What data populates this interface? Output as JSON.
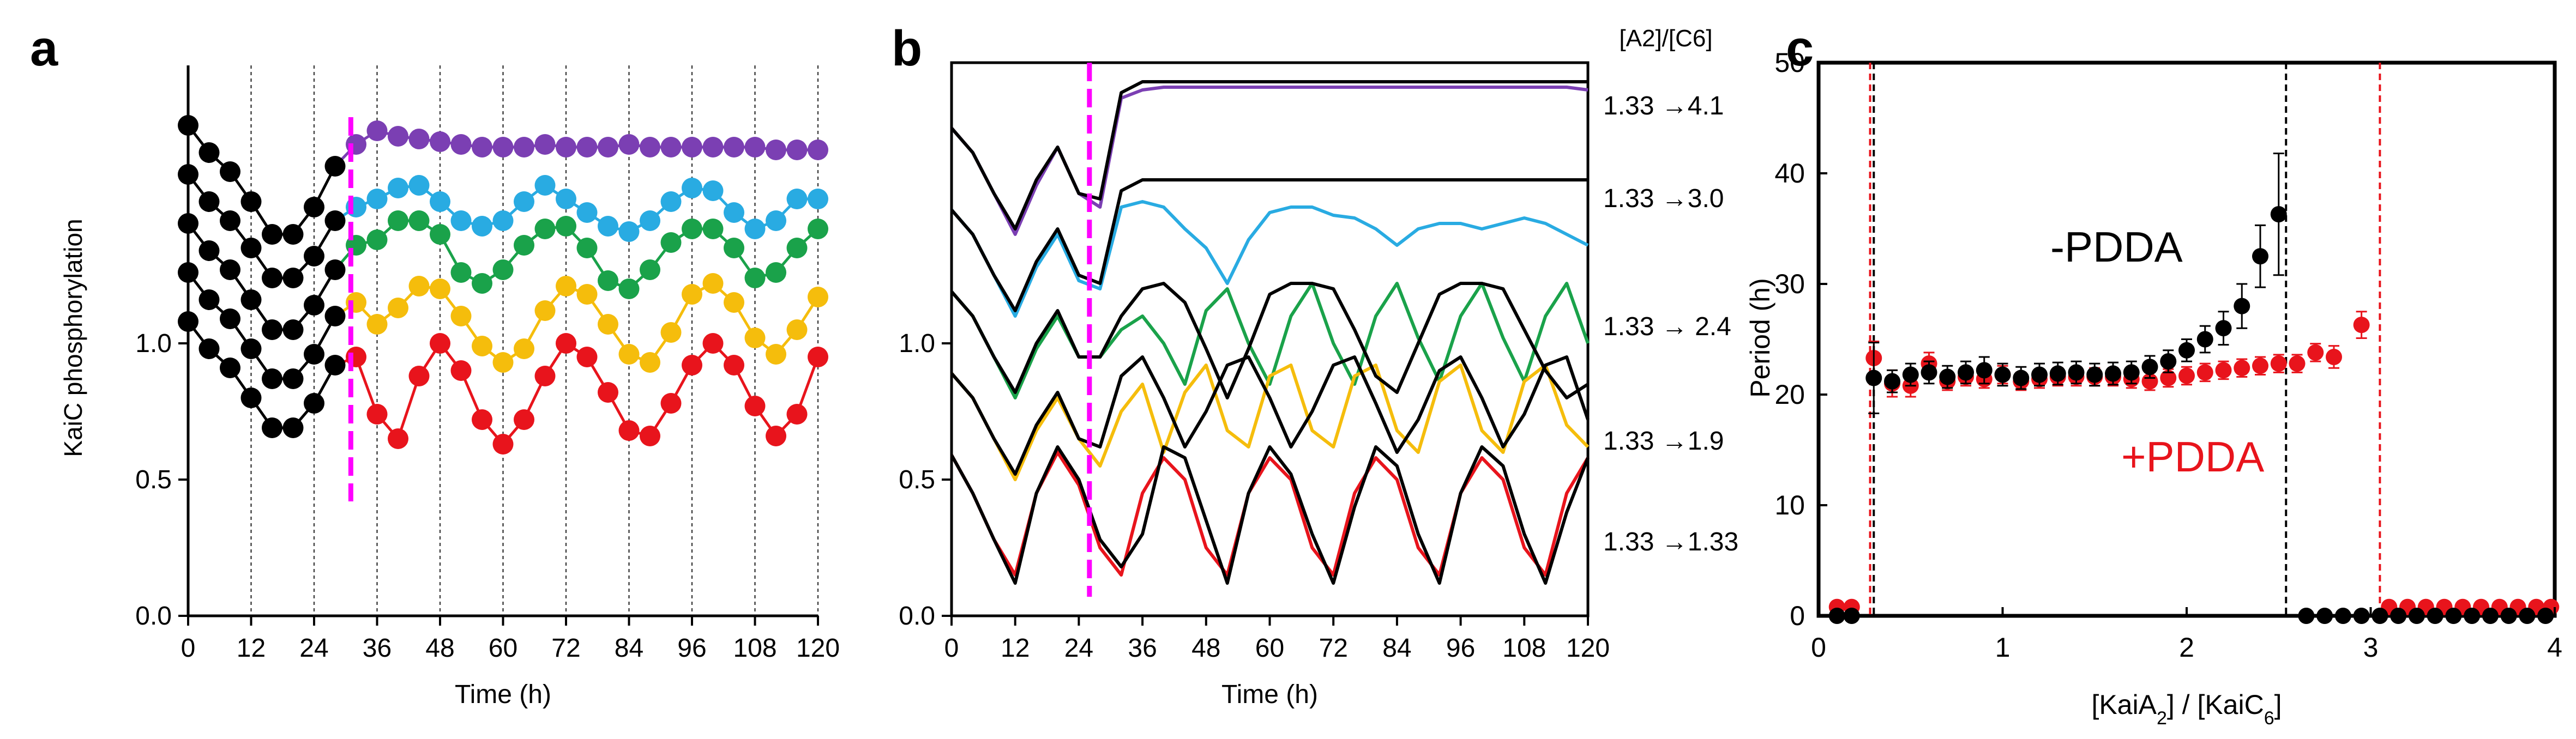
{
  "panels": {
    "a": {
      "letter": "a"
    },
    "b": {
      "letter": "b"
    },
    "c": {
      "letter": "c"
    }
  },
  "colors": {
    "purple": "#7b3fb3",
    "blue": "#29abe2",
    "green": "#1aa24a",
    "yellow": "#f5bd0c",
    "red": "#e8141c",
    "black": "#000000",
    "magenta": "#ff00ff"
  },
  "chart_data": [
    {
      "panel": "a",
      "type": "line",
      "xlabel": "Time (h)",
      "ylabel": "KaiC phosphorylation",
      "xlim": [
        0,
        120
      ],
      "xticks": [
        "0",
        "12",
        "24",
        "36",
        "48",
        "60",
        "72",
        "84",
        "96",
        "108",
        "120"
      ],
      "yticks": [
        "0.0",
        "0.5",
        "1.0"
      ],
      "grid": "vertical every 12 h",
      "marker_line_x": 31,
      "x": [
        0,
        4,
        8,
        12,
        16,
        20,
        24,
        28,
        32,
        36,
        40,
        44,
        48,
        52,
        56,
        60,
        64,
        68,
        72,
        76,
        80,
        84,
        88,
        92,
        96,
        100,
        104,
        108,
        112,
        116,
        120
      ],
      "series": [
        {
          "color": "purple",
          "values": [
            1.8,
            1.7,
            1.63,
            1.52,
            1.4,
            1.4,
            1.5,
            1.65,
            1.73,
            1.78,
            1.76,
            1.75,
            1.74,
            1.73,
            1.72,
            1.72,
            1.72,
            1.73,
            1.72,
            1.72,
            1.72,
            1.73,
            1.72,
            1.72,
            1.72,
            1.72,
            1.72,
            1.72,
            1.71,
            1.71,
            1.71
          ]
        },
        {
          "color": "blue",
          "values": [
            1.62,
            1.52,
            1.45,
            1.35,
            1.24,
            1.24,
            1.32,
            1.45,
            1.5,
            1.53,
            1.57,
            1.58,
            1.52,
            1.45,
            1.43,
            1.45,
            1.52,
            1.58,
            1.53,
            1.48,
            1.43,
            1.41,
            1.45,
            1.52,
            1.57,
            1.56,
            1.48,
            1.42,
            1.45,
            1.53,
            1.53
          ]
        },
        {
          "color": "green",
          "values": [
            1.44,
            1.34,
            1.27,
            1.16,
            1.05,
            1.05,
            1.14,
            1.27,
            1.36,
            1.38,
            1.45,
            1.45,
            1.4,
            1.26,
            1.22,
            1.27,
            1.36,
            1.42,
            1.43,
            1.35,
            1.23,
            1.2,
            1.27,
            1.37,
            1.42,
            1.42,
            1.35,
            1.24,
            1.26,
            1.35,
            1.42
          ]
        },
        {
          "color": "yellow",
          "values": [
            1.26,
            1.16,
            1.09,
            0.98,
            0.87,
            0.87,
            0.96,
            1.1,
            1.15,
            1.07,
            1.13,
            1.21,
            1.2,
            1.1,
            0.99,
            0.93,
            0.98,
            1.12,
            1.21,
            1.18,
            1.07,
            0.96,
            0.93,
            1.04,
            1.18,
            1.22,
            1.15,
            1.02,
            0.96,
            1.05,
            1.17
          ]
        },
        {
          "color": "red",
          "values": [
            1.08,
            0.98,
            0.91,
            0.8,
            0.69,
            0.69,
            0.78,
            0.92,
            0.95,
            0.74,
            0.65,
            0.88,
            1.0,
            0.9,
            0.72,
            0.63,
            0.72,
            0.88,
            1.0,
            0.95,
            0.82,
            0.68,
            0.66,
            0.78,
            0.92,
            1.0,
            0.92,
            0.77,
            0.66,
            0.74,
            0.95
          ]
        }
      ]
    },
    {
      "panel": "b",
      "type": "line",
      "xlabel": "Time (h)",
      "xlim": [
        0,
        120
      ],
      "xticks": [
        "0",
        "12",
        "24",
        "36",
        "48",
        "60",
        "72",
        "84",
        "96",
        "108",
        "120"
      ],
      "yticks": [
        "0.0",
        "0.5",
        "1.0"
      ],
      "marker_line_x": 26,
      "ratio_header": "[A2]/[C6]",
      "ratio_labels": [
        "1.33 →4.1",
        "1.33 →3.0",
        "1.33 → 2.4",
        "1.33 →1.9",
        "1.33 →1.33"
      ],
      "x": [
        0,
        4,
        8,
        12,
        16,
        20,
        24,
        28,
        32,
        36,
        40,
        44,
        48,
        52,
        56,
        60,
        64,
        68,
        72,
        76,
        80,
        84,
        88,
        92,
        96,
        100,
        104,
        108,
        112,
        116,
        120
      ],
      "series": [
        {
          "group": 1,
          "color": "black",
          "values": [
            1.79,
            1.7,
            1.55,
            1.42,
            1.6,
            1.72,
            1.55,
            1.53,
            1.92,
            1.96,
            1.96,
            1.96,
            1.96,
            1.96,
            1.96,
            1.96,
            1.96,
            1.96,
            1.96,
            1.96,
            1.96,
            1.96,
            1.96,
            1.96,
            1.96,
            1.96,
            1.96,
            1.96,
            1.96,
            1.96,
            1.96
          ]
        },
        {
          "group": 1,
          "color": "purple",
          "values": [
            1.79,
            1.7,
            1.55,
            1.4,
            1.58,
            1.72,
            1.55,
            1.5,
            1.9,
            1.93,
            1.94,
            1.94,
            1.94,
            1.94,
            1.94,
            1.94,
            1.94,
            1.94,
            1.94,
            1.94,
            1.94,
            1.94,
            1.94,
            1.94,
            1.94,
            1.94,
            1.94,
            1.94,
            1.94,
            1.94,
            1.93
          ]
        },
        {
          "group": 2,
          "color": "black",
          "values": [
            1.49,
            1.4,
            1.25,
            1.12,
            1.3,
            1.42,
            1.25,
            1.22,
            1.56,
            1.6,
            1.6,
            1.6,
            1.6,
            1.6,
            1.6,
            1.6,
            1.6,
            1.6,
            1.6,
            1.6,
            1.6,
            1.6,
            1.6,
            1.6,
            1.6,
            1.6,
            1.6,
            1.6,
            1.6,
            1.6,
            1.6
          ]
        },
        {
          "group": 2,
          "color": "blue",
          "values": [
            1.49,
            1.4,
            1.25,
            1.1,
            1.28,
            1.4,
            1.23,
            1.2,
            1.5,
            1.52,
            1.5,
            1.42,
            1.35,
            1.22,
            1.38,
            1.48,
            1.5,
            1.5,
            1.47,
            1.46,
            1.42,
            1.36,
            1.42,
            1.44,
            1.44,
            1.42,
            1.44,
            1.46,
            1.44,
            1.4,
            1.36
          ]
        },
        {
          "group": 3,
          "color": "black",
          "values": [
            1.19,
            1.1,
            0.95,
            0.82,
            1.0,
            1.12,
            0.95,
            0.95,
            1.1,
            1.2,
            1.22,
            1.15,
            0.98,
            0.8,
            0.98,
            1.18,
            1.22,
            1.22,
            1.2,
            1.05,
            0.88,
            0.82,
            1.0,
            1.18,
            1.22,
            1.22,
            1.2,
            1.05,
            0.9,
            0.8,
            0.85
          ]
        },
        {
          "group": 3,
          "color": "green",
          "values": [
            1.19,
            1.1,
            0.95,
            0.8,
            0.98,
            1.1,
            0.95,
            0.95,
            1.05,
            1.1,
            1.0,
            0.85,
            1.12,
            1.2,
            1.0,
            0.85,
            1.1,
            1.22,
            1.0,
            0.85,
            1.1,
            1.22,
            1.02,
            0.86,
            1.1,
            1.22,
            1.02,
            0.86,
            1.1,
            1.22,
            1.0
          ]
        },
        {
          "group": 4,
          "color": "black",
          "values": [
            0.89,
            0.8,
            0.65,
            0.52,
            0.7,
            0.82,
            0.65,
            0.62,
            0.88,
            0.95,
            0.8,
            0.62,
            0.75,
            0.92,
            0.95,
            0.8,
            0.62,
            0.75,
            0.92,
            0.95,
            0.78,
            0.6,
            0.72,
            0.9,
            0.95,
            0.8,
            0.62,
            0.74,
            0.92,
            0.95,
            0.72
          ]
        },
        {
          "group": 4,
          "color": "yellow",
          "values": [
            0.89,
            0.8,
            0.65,
            0.5,
            0.68,
            0.8,
            0.65,
            0.55,
            0.75,
            0.85,
            0.6,
            0.82,
            0.92,
            0.68,
            0.62,
            0.88,
            0.92,
            0.68,
            0.62,
            0.88,
            0.92,
            0.68,
            0.6,
            0.86,
            0.92,
            0.68,
            0.6,
            0.86,
            0.92,
            0.7,
            0.62
          ]
        },
        {
          "group": 5,
          "color": "black",
          "values": [
            0.59,
            0.45,
            0.28,
            0.12,
            0.45,
            0.62,
            0.5,
            0.28,
            0.18,
            0.3,
            0.62,
            0.58,
            0.35,
            0.12,
            0.45,
            0.62,
            0.52,
            0.3,
            0.12,
            0.4,
            0.62,
            0.55,
            0.3,
            0.12,
            0.45,
            0.62,
            0.55,
            0.3,
            0.12,
            0.38,
            0.58
          ]
        },
        {
          "group": 5,
          "color": "red",
          "values": [
            0.59,
            0.45,
            0.28,
            0.15,
            0.45,
            0.6,
            0.48,
            0.25,
            0.15,
            0.45,
            0.58,
            0.5,
            0.25,
            0.15,
            0.45,
            0.58,
            0.5,
            0.25,
            0.15,
            0.45,
            0.58,
            0.5,
            0.25,
            0.15,
            0.45,
            0.58,
            0.5,
            0.25,
            0.15,
            0.45,
            0.58
          ]
        }
      ]
    },
    {
      "panel": "c",
      "type": "scatter",
      "xlabel": "[KaiA2] / [KaiC6]",
      "ylabel": "Period (h)",
      "xlim": [
        0,
        4
      ],
      "ylim": [
        0,
        50
      ],
      "xticks": [
        "0",
        "1",
        "2",
        "3",
        "4"
      ],
      "yticks": [
        "0",
        "10",
        "20",
        "30",
        "40",
        "50"
      ],
      "vlines": [
        {
          "x": 0.28,
          "color": "red"
        },
        {
          "x": 0.3,
          "color": "black"
        },
        {
          "x": 2.54,
          "color": "black"
        },
        {
          "x": 3.05,
          "color": "red"
        }
      ],
      "series": [
        {
          "name": "-PDDA",
          "color": "black",
          "x": [
            0.1,
            0.18,
            0.3,
            0.4,
            0.5,
            0.6,
            0.7,
            0.8,
            0.9,
            1.0,
            1.1,
            1.2,
            1.3,
            1.4,
            1.5,
            1.6,
            1.7,
            1.8,
            1.9,
            2.0,
            2.1,
            2.2,
            2.3,
            2.4,
            2.5,
            2.65,
            2.75,
            2.85,
            2.95,
            3.05,
            3.15,
            3.25,
            3.35,
            3.45,
            3.55,
            3.65,
            3.75,
            3.85,
            3.95
          ],
          "y": [
            0,
            0,
            21.5,
            21.2,
            21.8,
            22.0,
            21.6,
            22.0,
            22.2,
            21.8,
            21.5,
            21.8,
            21.9,
            22.0,
            21.8,
            21.9,
            22.0,
            22.5,
            23.0,
            24.0,
            25.0,
            26.0,
            28.0,
            32.5,
            36.3,
            0,
            0,
            0,
            0,
            0,
            0,
            0,
            0,
            0,
            0,
            0,
            0,
            0,
            0
          ],
          "err": [
            0,
            0,
            3.2,
            1.0,
            1.0,
            1.0,
            1.0,
            1.0,
            1.2,
            1.0,
            1.0,
            1.0,
            1.0,
            1.0,
            1.0,
            1.0,
            1.0,
            1.0,
            1.0,
            1.0,
            1.2,
            1.5,
            2.0,
            2.8,
            5.5,
            0,
            0,
            0,
            0,
            0,
            0,
            0,
            0,
            0,
            0,
            0,
            0,
            0,
            0
          ]
        },
        {
          "name": "+PDDA",
          "color": "red",
          "x": [
            0.1,
            0.18,
            0.3,
            0.4,
            0.5,
            0.6,
            0.7,
            0.8,
            0.9,
            1.0,
            1.1,
            1.2,
            1.3,
            1.4,
            1.5,
            1.6,
            1.7,
            1.8,
            1.9,
            2.0,
            2.1,
            2.2,
            2.3,
            2.4,
            2.5,
            2.6,
            2.7,
            2.8,
            2.95,
            3.1,
            3.2,
            3.3,
            3.4,
            3.5,
            3.6,
            3.7,
            3.8,
            3.9,
            3.98
          ],
          "y": [
            0.8,
            0.8,
            23.3,
            21.0,
            20.8,
            22.8,
            21.2,
            21.6,
            21.4,
            21.8,
            21.2,
            21.4,
            21.6,
            21.6,
            21.6,
            21.6,
            21.4,
            21.2,
            21.5,
            21.7,
            22.0,
            22.2,
            22.4,
            22.6,
            22.8,
            22.8,
            23.8,
            23.4,
            26.3,
            0.8,
            0.8,
            0.8,
            0.8,
            0.8,
            0.8,
            0.8,
            0.8,
            0.8,
            0.8
          ],
          "err": [
            0,
            0,
            1.5,
            1.2,
            1.0,
            1.0,
            0.8,
            0.8,
            0.8,
            0.8,
            0.8,
            0.8,
            0.8,
            0.8,
            0.8,
            0.8,
            0.8,
            0.8,
            0.8,
            0.8,
            0.8,
            0.8,
            0.8,
            0.8,
            0.8,
            0.8,
            0.8,
            1.0,
            1.2,
            0,
            0,
            0,
            0,
            0,
            0,
            0,
            0,
            0,
            0
          ]
        }
      ],
      "annotations": [
        {
          "text": "-PDDA",
          "color": "black"
        },
        {
          "text": "+PDDA",
          "color": "red"
        }
      ]
    }
  ]
}
